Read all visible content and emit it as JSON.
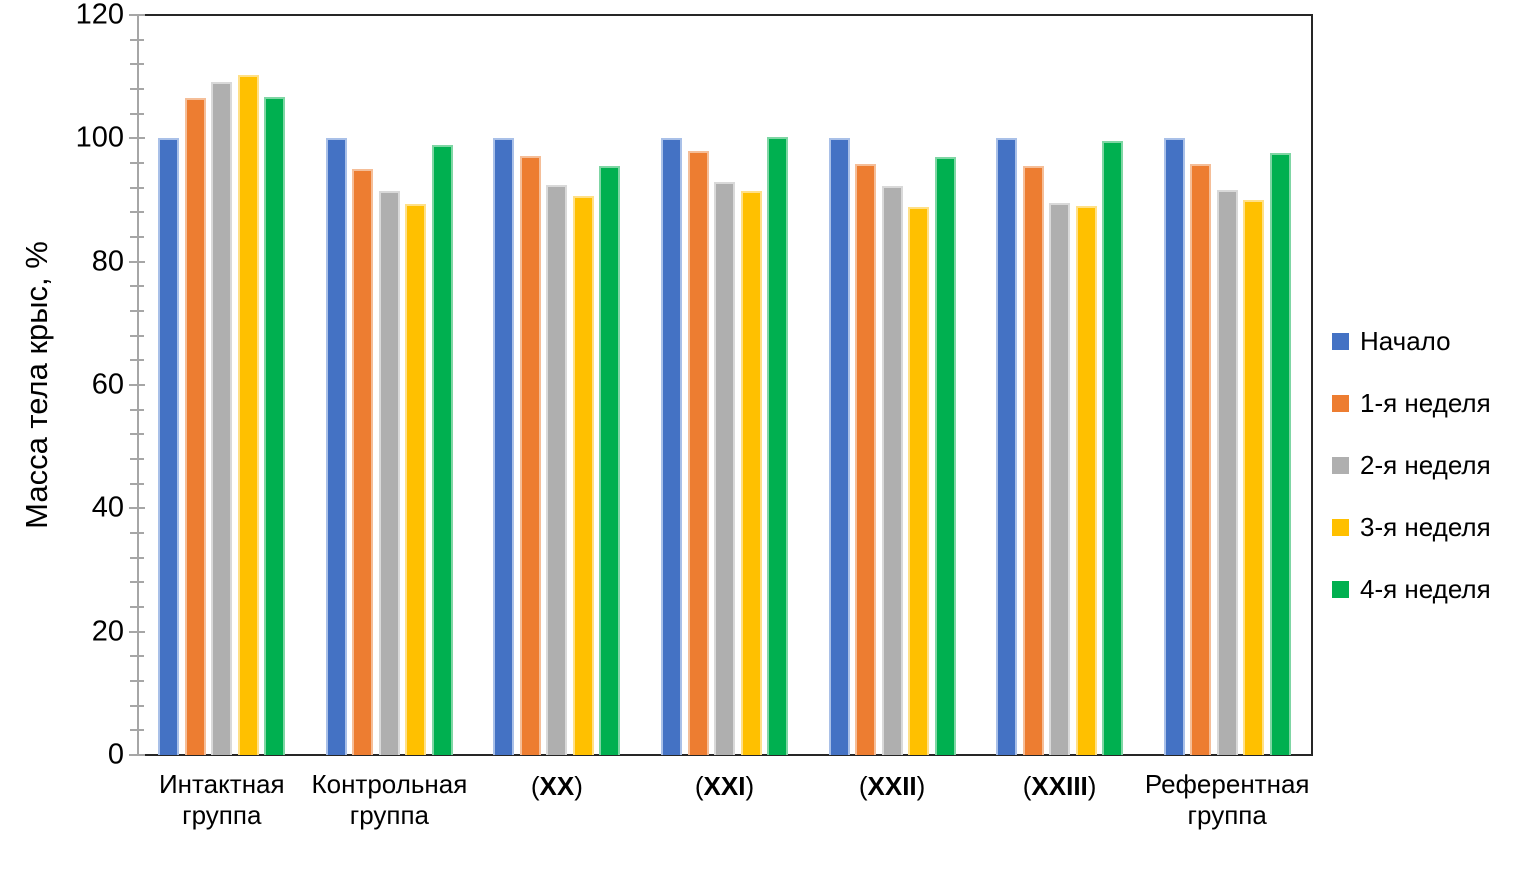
{
  "chart_data": {
    "type": "bar",
    "title": "",
    "xlabel": "",
    "ylabel": "Масса тела крыс, %",
    "ylim": [
      0,
      120
    ],
    "y_major_step": 20,
    "y_minor_step": 4,
    "y_tick_labels": [
      "0",
      "20",
      "40",
      "60",
      "80",
      "100",
      "120"
    ],
    "grid": false,
    "legend_position": "right",
    "categories": [
      "Интактная группа",
      "Контрольная группа",
      "(XX)",
      "(XXI)",
      "(XXII)",
      "(XXIII)",
      "Референтная группа"
    ],
    "series": [
      {
        "name": "Начало",
        "color": "#4472C4",
        "border_color": "#A9C0E8",
        "values": [
          100.0,
          100.0,
          100.0,
          100.0,
          100.0,
          100.0,
          100.0
        ]
      },
      {
        "name": "1-я неделя",
        "color": "#ED7D31",
        "border_color": "#F5BE98",
        "values": [
          106.5,
          95.1,
          97.1,
          98.0,
          95.9,
          95.5,
          95.8
        ]
      },
      {
        "name": "2-я неделя",
        "color": "#AFAFAF",
        "border_color": "#D9D9D9",
        "values": [
          109.2,
          91.5,
          92.5,
          92.9,
          92.2,
          89.6,
          91.6
        ]
      },
      {
        "name": "3-я неделя",
        "color": "#FFC000",
        "border_color": "#FFE087",
        "values": [
          110.3,
          89.3,
          90.7,
          91.5,
          88.8,
          89.1,
          90.0
        ]
      },
      {
        "name": "4-я неделя",
        "color": "#00B050",
        "border_color": "#7FD6A4",
        "values": [
          106.7,
          99.0,
          95.6,
          100.3,
          96.9,
          99.6,
          97.7
        ]
      }
    ],
    "axis_colors": {
      "left_axis": "#A6A6A6",
      "frame": "#262626"
    }
  }
}
